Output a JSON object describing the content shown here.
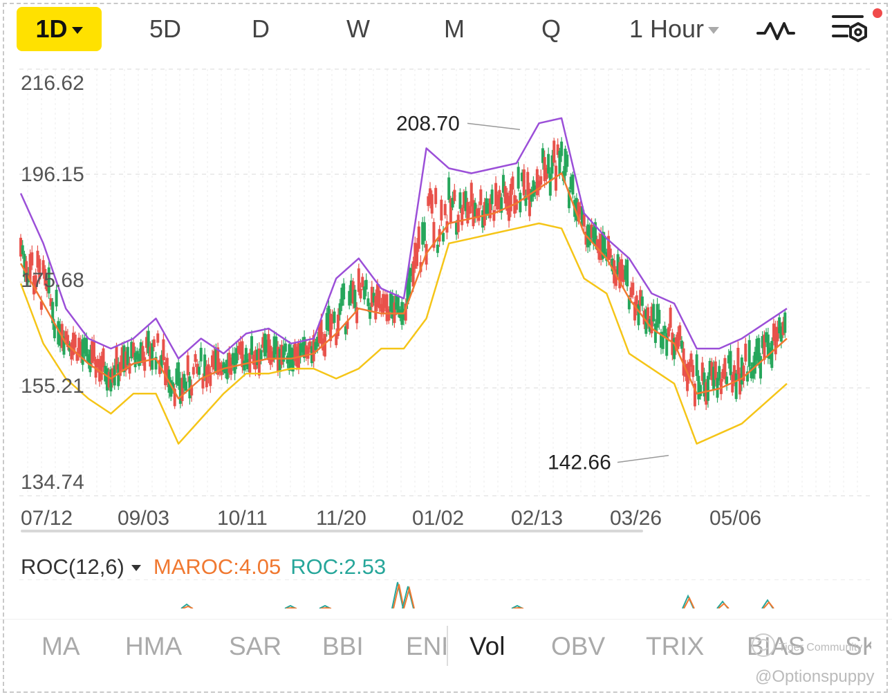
{
  "toolbar": {
    "tabs": [
      "1D",
      "5D",
      "D",
      "W",
      "M",
      "Q"
    ],
    "active_tab": "1D",
    "interval_label": "1 Hour",
    "icons": [
      "line-chart-icon",
      "settings-icon"
    ],
    "notification_color": "#f04a4a",
    "accent_color": "#ffe100"
  },
  "chart": {
    "y_axis_labels": [
      "216.62",
      "196.15",
      "175.68",
      "155.21",
      "134.74"
    ],
    "x_axis_labels": [
      "07/12",
      "09/03",
      "10/11",
      "11/20",
      "01/02",
      "02/13",
      "03/26",
      "05/06"
    ],
    "high_marker": "208.70",
    "low_marker": "142.66",
    "colors": {
      "upper_band": "#9b4fd8",
      "middle_band": "#f07830",
      "lower_band": "#f5c518",
      "up_candle": "#26a65b",
      "down_candle": "#e8514a"
    }
  },
  "chart_data": {
    "type": "line",
    "ylim": [
      134.74,
      216.62
    ],
    "x_ticks": [
      "07/12",
      "09/03",
      "10/11",
      "11/20",
      "01/02",
      "02/13",
      "03/26",
      "05/06"
    ],
    "series": [
      {
        "values": [
          195,
          185,
          172,
          166,
          164,
          166,
          170,
          162,
          166,
          163,
          167,
          168,
          165,
          166,
          178,
          182,
          176,
          174,
          204,
          200,
          199,
          200,
          201,
          209,
          210,
          191,
          186,
          182,
          175,
          173,
          164,
          164,
          166,
          169,
          172
        ]
      },
      {
        "values": [
          181,
          173,
          165,
          161,
          158,
          161,
          162,
          154,
          158,
          160,
          161,
          162,
          162,
          163,
          167,
          172,
          171,
          171,
          183,
          189,
          190,
          191,
          193,
          196,
          199,
          187,
          182,
          174,
          168,
          165,
          155,
          156,
          158,
          162,
          166
        ]
      },
      {
        "values": [
          177,
          165,
          158,
          154,
          151,
          155,
          155,
          145,
          150,
          155,
          159,
          159,
          160,
          160,
          158,
          160,
          164,
          164,
          170,
          185,
          186,
          187,
          188,
          189,
          188,
          178,
          175,
          163,
          160,
          157,
          145,
          147,
          149,
          153,
          157
        ]
      }
    ],
    "annotations": [
      {
        "label": "208.70"
      },
      {
        "label": "142.66"
      }
    ]
  },
  "indicator": {
    "name": "ROC(12,6)",
    "maroc": "MAROC:4.05",
    "roc": "ROC:2.53"
  },
  "bottom_tabs": {
    "items": [
      "MA",
      "HMA",
      "SAR",
      "BBI",
      "ENE",
      "Vol",
      "OBV",
      "TRIX",
      "BIAS",
      "SK"
    ],
    "active": "Vol"
  },
  "watermark": {
    "brand": "Tiger Community",
    "handle": "@Optionspuppy"
  }
}
